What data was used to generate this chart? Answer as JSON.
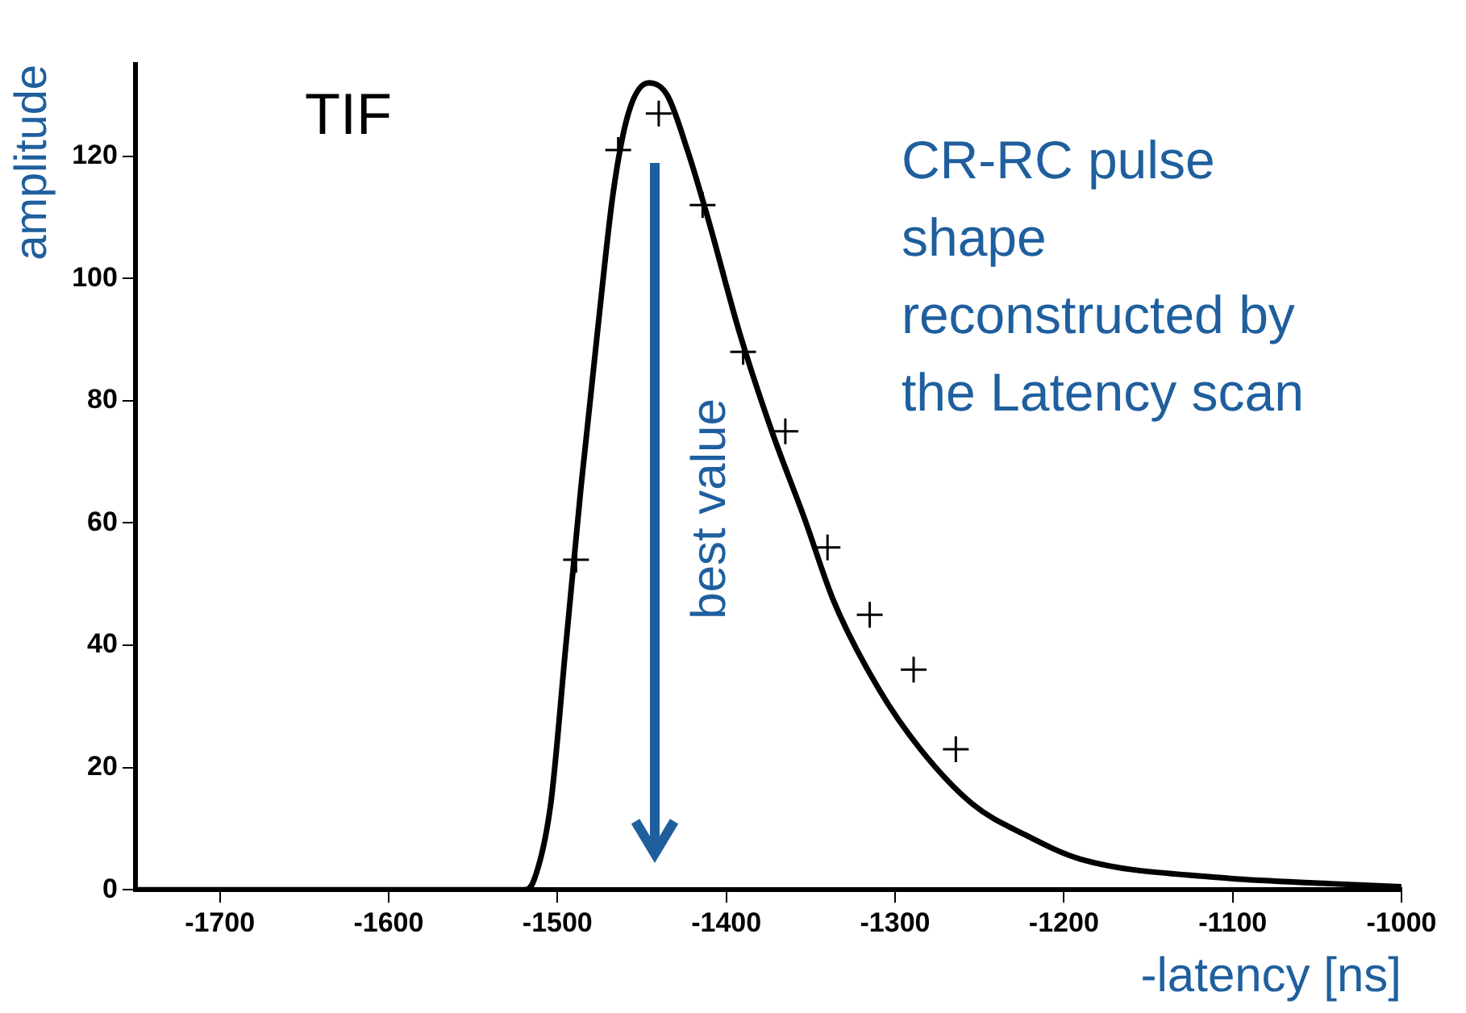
{
  "chart_data": {
    "type": "scatter",
    "xlabel": "-latency [ns]",
    "ylabel": "amplitude",
    "xlim": [
      -1750,
      -1000
    ],
    "xticks": [
      -1700,
      -1600,
      -1500,
      -1400,
      -1300,
      -1200,
      -1100,
      -1000
    ],
    "ylim": [
      0,
      135
    ],
    "yticks": [
      0,
      20,
      40,
      60,
      80,
      100,
      120
    ],
    "grid": false,
    "legend": false,
    "marker": "cross",
    "series": [
      {
        "color": "#000000",
        "x": [
          -1489,
          -1464,
          -1440,
          -1414,
          -1390,
          -1365,
          -1340,
          -1315,
          -1289,
          -1264
        ],
        "values": [
          54,
          121,
          127,
          112,
          88,
          75,
          56,
          45,
          36,
          23
        ]
      },
      {
        "type": "line",
        "color": "#000000",
        "marker": "none",
        "x": [
          -1750,
          -1520,
          -1514,
          -1504,
          -1495,
          -1486,
          -1476,
          -1467,
          -1458,
          -1446,
          -1435,
          -1423,
          -1411,
          -1392,
          -1373,
          -1354,
          -1336,
          -1310,
          -1285,
          -1254,
          -1223,
          -1190,
          -1108,
          -1042,
          -1000
        ],
        "values": [
          0,
          0,
          1.5,
          14,
          40,
          66,
          92,
          114,
          127,
          132,
          130,
          121,
          110,
          91,
          75,
          61,
          47,
          33,
          23,
          14,
          9,
          5,
          2,
          1,
          0.5
        ]
      }
    ],
    "ref_lines": [
      {
        "axis": "x",
        "value": -1442,
        "label": "best value",
        "color": "#1f5f9e"
      }
    ],
    "annotations": [
      "TIF",
      "CR-RC pulse\nshape\nreconstructed by\nthe Latency scan"
    ]
  }
}
